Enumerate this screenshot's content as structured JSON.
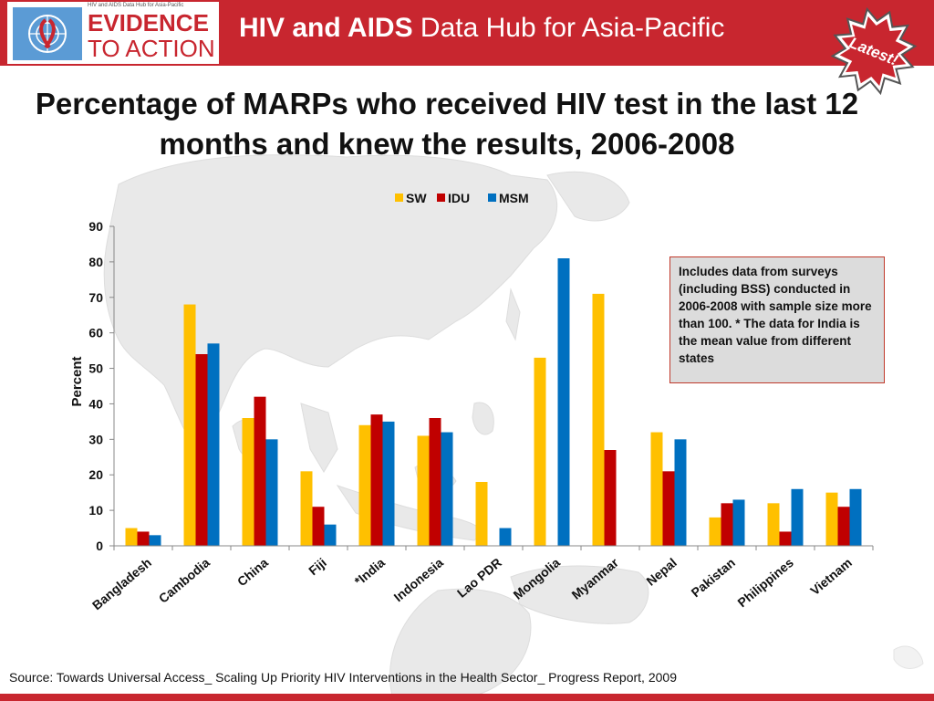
{
  "header": {
    "logo_small": "HIV and AIDS Data Hub for Asia-Pacific",
    "logo_line1": "EVIDENCE",
    "logo_line2": "TO ACTION",
    "title_bold": "HIV and AIDS",
    "title_rest": " Data Hub for Asia-Pacific",
    "badge": "Latest!"
  },
  "slide_title": "Percentage of MARPs who received HIV test in the last 12 months and knew the results, 2006-2008",
  "note": "Includes data from surveys (including BSS) conducted in 2006-2008 with sample size more than 100. * The data for India is the mean value from different states",
  "source": "Source: Towards Universal  Access_ Scaling Up Priority HIV Interventions in the Health Sector_ Progress Report, 2009",
  "colors": {
    "header": "#c8262f",
    "sw": "#ffc000",
    "idu": "#c00000",
    "msm": "#0070c0"
  },
  "chart_data": {
    "type": "bar",
    "title": "",
    "xlabel": "",
    "ylabel": "Percent",
    "ylim": [
      0,
      90
    ],
    "yticks": [
      0,
      10,
      20,
      30,
      40,
      50,
      60,
      70,
      80,
      90
    ],
    "legend_position": "top-center",
    "grid": false,
    "categories": [
      "Bangladesh",
      "Cambodia",
      "China",
      "Fiji",
      "*India",
      "Indonesia",
      "Lao PDR",
      "Mongolia",
      "Myanmar",
      "Nepal",
      "Pakistan",
      "Philippines",
      "Vietnam"
    ],
    "series": [
      {
        "name": "SW",
        "color": "#ffc000",
        "values": [
          5,
          68,
          36,
          21,
          34,
          31,
          18,
          53,
          71,
          32,
          8,
          12,
          15
        ]
      },
      {
        "name": "IDU",
        "color": "#c00000",
        "values": [
          4,
          54,
          42,
          11,
          37,
          36,
          null,
          null,
          27,
          21,
          12,
          4,
          11
        ]
      },
      {
        "name": "MSM",
        "color": "#0070c0",
        "values": [
          3,
          57,
          30,
          6,
          35,
          32,
          5,
          81,
          null,
          30,
          13,
          16,
          16
        ]
      }
    ]
  }
}
